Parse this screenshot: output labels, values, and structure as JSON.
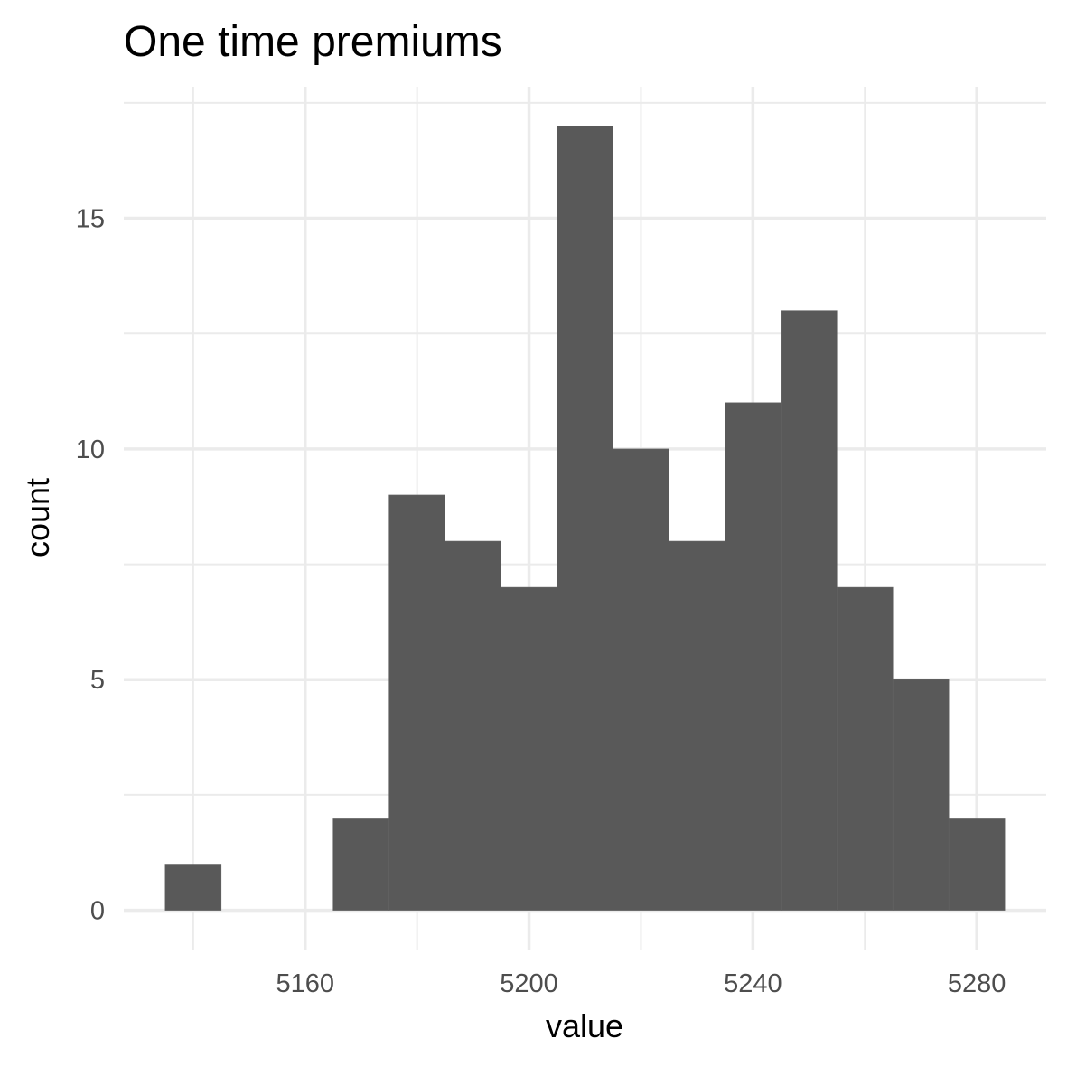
{
  "chart_data": {
    "type": "bar",
    "title": "One time premiums",
    "xlabel": "value",
    "ylabel": "count",
    "bins": [
      {
        "start": 5135,
        "end": 5145,
        "count": 1
      },
      {
        "start": 5145,
        "end": 5155,
        "count": 0
      },
      {
        "start": 5155,
        "end": 5165,
        "count": 0
      },
      {
        "start": 5165,
        "end": 5175,
        "count": 2
      },
      {
        "start": 5175,
        "end": 5185,
        "count": 9
      },
      {
        "start": 5185,
        "end": 5195,
        "count": 8
      },
      {
        "start": 5195,
        "end": 5205,
        "count": 7
      },
      {
        "start": 5205,
        "end": 5215,
        "count": 17
      },
      {
        "start": 5215,
        "end": 5225,
        "count": 10
      },
      {
        "start": 5225,
        "end": 5235,
        "count": 8
      },
      {
        "start": 5235,
        "end": 5245,
        "count": 11
      },
      {
        "start": 5245,
        "end": 5255,
        "count": 13
      },
      {
        "start": 5255,
        "end": 5265,
        "count": 7
      },
      {
        "start": 5265,
        "end": 5275,
        "count": 5
      },
      {
        "start": 5275,
        "end": 5285,
        "count": 2
      }
    ],
    "xlim": [
      5127.6,
      5292.4
    ],
    "ylim": [
      -0.85,
      17.85
    ],
    "x_ticks": [
      "5160",
      "5200",
      "5240",
      "5280"
    ],
    "y_ticks": [
      "0",
      "5",
      "10",
      "15"
    ],
    "grid": true,
    "bar_color": "#595959",
    "grid_color": "#ebebeb",
    "background": "#ffffff"
  }
}
